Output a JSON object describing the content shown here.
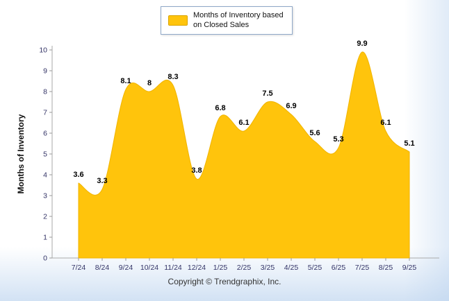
{
  "chart_data": {
    "type": "area",
    "title": "Months of Inventory based on Closed Sales",
    "categories": [
      "7/24",
      "8/24",
      "9/24",
      "10/24",
      "11/24",
      "12/24",
      "1/25",
      "2/25",
      "3/25",
      "4/25",
      "5/25",
      "6/25",
      "7/25",
      "8/25",
      "9/25"
    ],
    "values": [
      3.6,
      3.3,
      8.1,
      8,
      8.3,
      3.8,
      6.8,
      6.1,
      7.5,
      6.9,
      5.6,
      5.3,
      9.9,
      6.1,
      5.1
    ],
    "xlabel": "",
    "ylabel": "Months of Inventory",
    "ylim": [
      0,
      10
    ],
    "ytick_step": 1,
    "grid": false,
    "legend_position": "top",
    "area_color": "#FFC40C",
    "area_edge_color": "#F1B400",
    "label_color": "#000000",
    "axis_label_color": "#333366",
    "axis_line_color": "#AAAAAA"
  },
  "legend": {
    "label": "Months of Inventory based on Closed Sales"
  },
  "footer": {
    "copyright": "Copyright © Trendgraphix, Inc."
  }
}
